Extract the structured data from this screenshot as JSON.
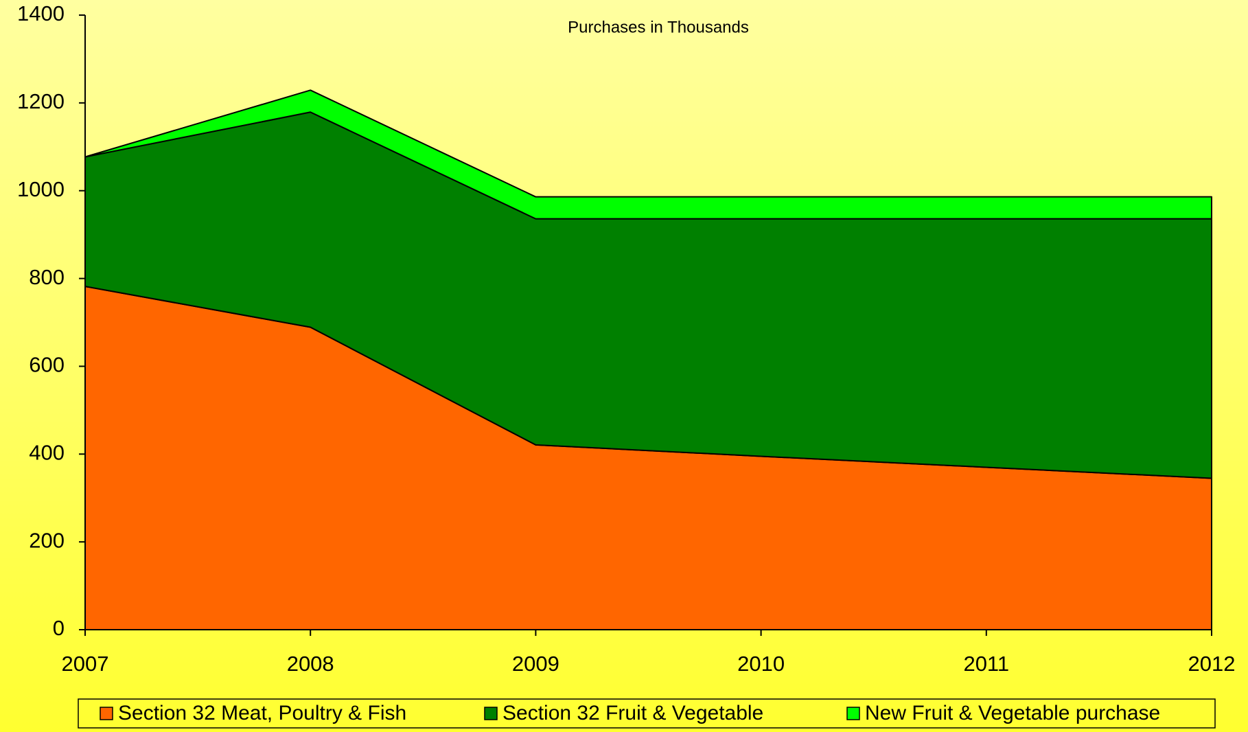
{
  "chart_data": {
    "type": "stacked_area",
    "title": "Purchases in Thousands",
    "categories": [
      "2007",
      "2008",
      "2009",
      "2010",
      "2011",
      "2012"
    ],
    "series": [
      {
        "name": "Section 32 Meat, Poultry & Fish",
        "color": "#ff6600",
        "values": [
          782,
          689,
          421,
          395,
          370,
          345
        ]
      },
      {
        "name": "Section 32 Fruit & Vegetable",
        "color": "#008000",
        "values": [
          295,
          490,
          515,
          541,
          566,
          591
        ]
      },
      {
        "name": "New Fruit & Vegetable purchase",
        "color": "#00ff00",
        "values": [
          0,
          50,
          50,
          50,
          50,
          50
        ]
      }
    ],
    "ylim": [
      0,
      1400
    ],
    "yticks": [
      0,
      200,
      400,
      600,
      800,
      1000,
      1200,
      1400
    ],
    "grid": false,
    "legend": "bottom"
  }
}
